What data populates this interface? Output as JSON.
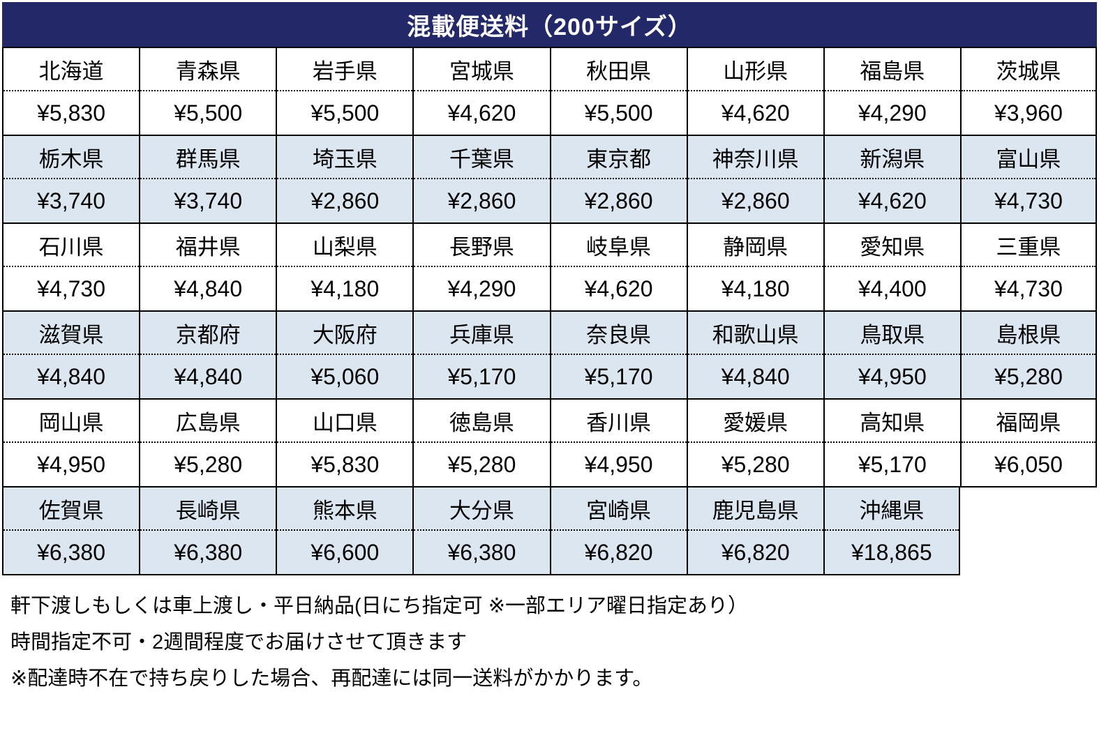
{
  "title": "混載便送料（200サイズ）",
  "colors": {
    "header_bg": "#232968",
    "header_text": "#ffffff",
    "row_shaded_bg": "#dce6f1",
    "row_plain_bg": "#ffffff",
    "border": "#000000",
    "text": "#000000"
  },
  "table": {
    "bands": [
      {
        "cells": [
          {
            "pref": "北海道",
            "price": "¥5,830"
          },
          {
            "pref": "青森県",
            "price": "¥5,500"
          },
          {
            "pref": "岩手県",
            "price": "¥5,500"
          },
          {
            "pref": "宮城県",
            "price": "¥4,620"
          },
          {
            "pref": "秋田県",
            "price": "¥5,500"
          },
          {
            "pref": "山形県",
            "price": "¥4,620"
          },
          {
            "pref": "福島県",
            "price": "¥4,290"
          },
          {
            "pref": "茨城県",
            "price": "¥3,960"
          }
        ]
      },
      {
        "cells": [
          {
            "pref": "栃木県",
            "price": "¥3,740"
          },
          {
            "pref": "群馬県",
            "price": "¥3,740"
          },
          {
            "pref": "埼玉県",
            "price": "¥2,860"
          },
          {
            "pref": "千葉県",
            "price": "¥2,860"
          },
          {
            "pref": "東京都",
            "price": "¥2,860"
          },
          {
            "pref": "神奈川県",
            "price": "¥2,860"
          },
          {
            "pref": "新潟県",
            "price": "¥4,620"
          },
          {
            "pref": "富山県",
            "price": "¥4,730"
          }
        ]
      },
      {
        "cells": [
          {
            "pref": "石川県",
            "price": "¥4,730"
          },
          {
            "pref": "福井県",
            "price": "¥4,840"
          },
          {
            "pref": "山梨県",
            "price": "¥4,180"
          },
          {
            "pref": "長野県",
            "price": "¥4,290"
          },
          {
            "pref": "岐阜県",
            "price": "¥4,620"
          },
          {
            "pref": "静岡県",
            "price": "¥4,180"
          },
          {
            "pref": "愛知県",
            "price": "¥4,400"
          },
          {
            "pref": "三重県",
            "price": "¥4,730"
          }
        ]
      },
      {
        "cells": [
          {
            "pref": "滋賀県",
            "price": "¥4,840"
          },
          {
            "pref": "京都府",
            "price": "¥4,840"
          },
          {
            "pref": "大阪府",
            "price": "¥5,060"
          },
          {
            "pref": "兵庫県",
            "price": "¥5,170"
          },
          {
            "pref": "奈良県",
            "price": "¥5,170"
          },
          {
            "pref": "和歌山県",
            "price": "¥4,840"
          },
          {
            "pref": "鳥取県",
            "price": "¥4,950"
          },
          {
            "pref": "島根県",
            "price": "¥5,280"
          }
        ]
      },
      {
        "cells": [
          {
            "pref": "岡山県",
            "price": "¥4,950"
          },
          {
            "pref": "広島県",
            "price": "¥5,280"
          },
          {
            "pref": "山口県",
            "price": "¥5,830"
          },
          {
            "pref": "徳島県",
            "price": "¥5,280"
          },
          {
            "pref": "香川県",
            "price": "¥4,950"
          },
          {
            "pref": "愛媛県",
            "price": "¥5,280"
          },
          {
            "pref": "高知県",
            "price": "¥5,170"
          },
          {
            "pref": "福岡県",
            "price": "¥6,050"
          }
        ]
      },
      {
        "cells": [
          {
            "pref": "佐賀県",
            "price": "¥6,380"
          },
          {
            "pref": "長崎県",
            "price": "¥6,380"
          },
          {
            "pref": "熊本県",
            "price": "¥6,600"
          },
          {
            "pref": "大分県",
            "price": "¥6,380"
          },
          {
            "pref": "宮崎県",
            "price": "¥6,820"
          },
          {
            "pref": "鹿児島県",
            "price": "¥6,820"
          },
          {
            "pref": "沖縄県",
            "price": "¥18,865"
          }
        ]
      }
    ]
  },
  "notes": [
    "軒下渡しもしくは車上渡し・平日納品(日にち指定可 ※一部エリア曜日指定あり）",
    "時間指定不可・2週間程度でお届けさせて頂きます",
    "※配達時不在で持ち戻りした場合、再配達には同一送料がかかります。"
  ]
}
